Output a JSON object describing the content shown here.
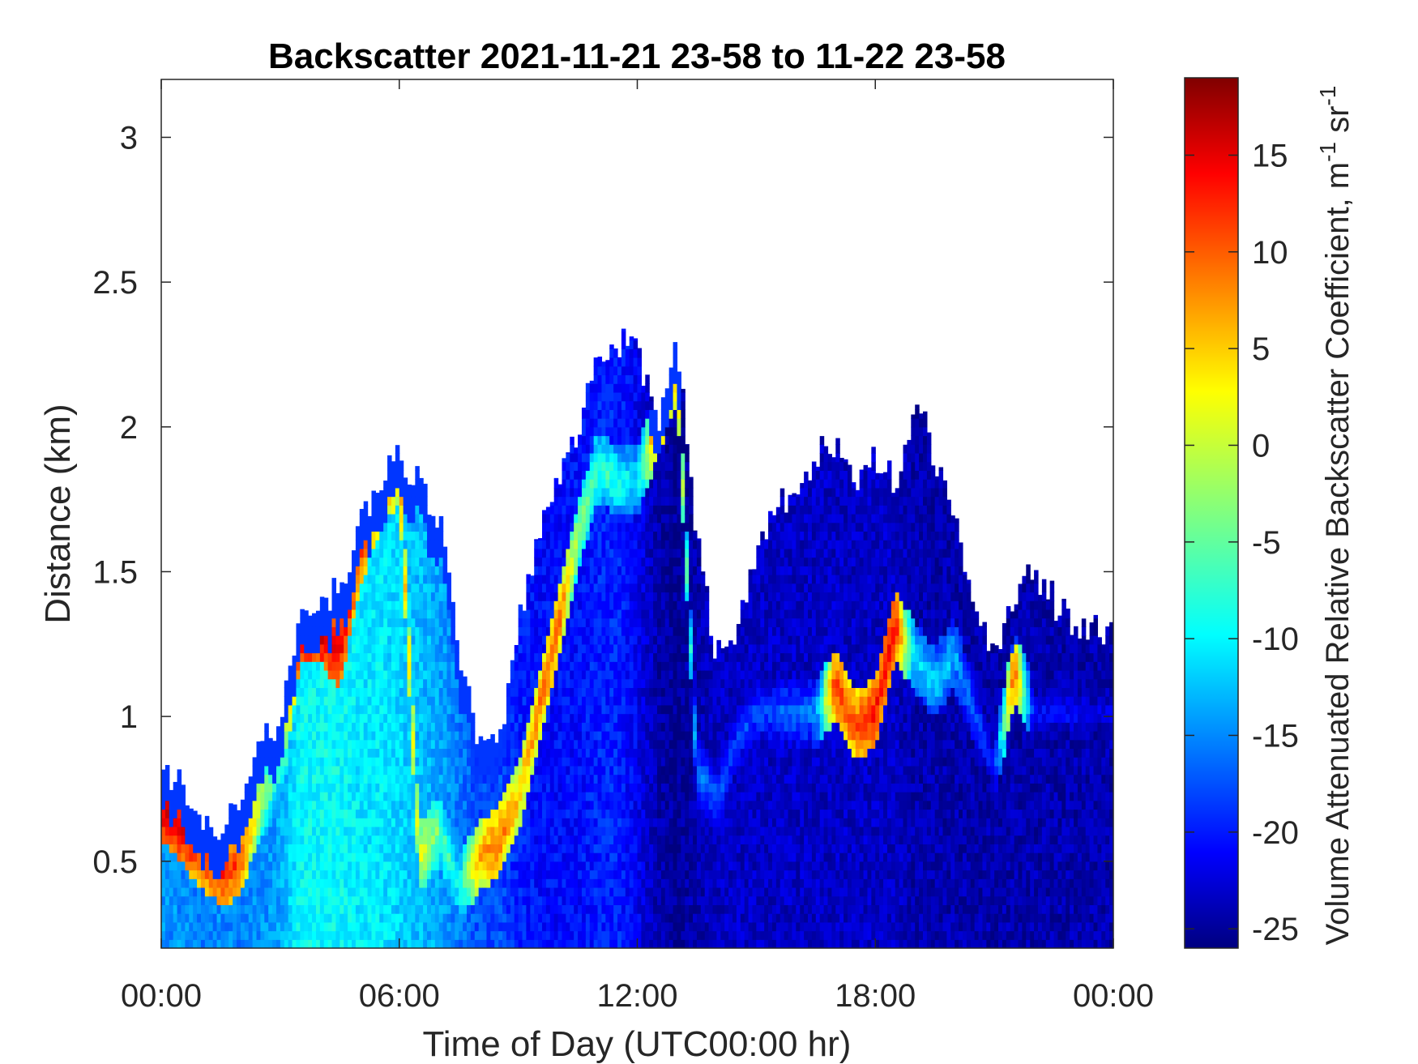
{
  "chart_data": {
    "type": "heatmap",
    "title": "Backscatter 2021-11-21 23-58 to 11-22 23-58",
    "xlabel": "Time of Day (UTC00:00 hr)",
    "ylabel": "Distance (km)",
    "colorbar_label_main": "Volume Attenuated Relative Backscatter Coefficient, m",
    "colorbar_label_sup1": "-1",
    "colorbar_label_mid": " sr",
    "colorbar_label_sup2": "-1",
    "colormap": "jet",
    "xlim_hours": [
      0,
      24
    ],
    "ylim_km": [
      0.2,
      3.2
    ],
    "clim": [
      -26,
      19
    ],
    "x_ticks_hours": [
      0,
      6,
      12,
      18,
      24
    ],
    "x_tick_labels": [
      "00:00",
      "06:00",
      "12:00",
      "18:00",
      "00:00"
    ],
    "y_ticks": [
      0.5,
      1,
      1.5,
      2,
      2.5,
      3
    ],
    "y_tick_labels": [
      "0.5",
      "1",
      "1.5",
      "2",
      "2.5",
      "3"
    ],
    "colorbar_ticks": [
      -25,
      -20,
      -15,
      -10,
      -5,
      0,
      5,
      10,
      15
    ],
    "colorbar_tick_labels": [
      "-25",
      "-20",
      "-15",
      "-10",
      "-5",
      "0",
      "5",
      "10",
      "15"
    ],
    "grid": false,
    "profiles": [
      {
        "t": 0.0,
        "top": 0.8,
        "peak_h": 0.68,
        "peak": 16,
        "base": -14
      },
      {
        "t": 0.5,
        "top": 0.78,
        "peak_h": 0.6,
        "peak": 15,
        "base": -14
      },
      {
        "t": 1.0,
        "top": 0.6,
        "peak_h": 0.52,
        "peak": 12,
        "base": -15
      },
      {
        "t": 1.5,
        "top": 0.6,
        "peak_h": 0.45,
        "peak": 13,
        "base": -14
      },
      {
        "t": 2.0,
        "top": 0.7,
        "peak_h": 0.48,
        "peak": 10,
        "base": -15
      },
      {
        "t": 2.5,
        "top": 0.9,
        "peak_h": 0.7,
        "peak": 0,
        "base": -14
      },
      {
        "t": 3.0,
        "top": 1.0,
        "peak_h": 0.8,
        "peak": -8,
        "base": -13
      },
      {
        "t": 3.5,
        "top": 1.35,
        "peak_h": 1.28,
        "peak": 15,
        "base": -9
      },
      {
        "t": 4.0,
        "top": 1.4,
        "peak_h": 1.3,
        "peak": 17,
        "base": -9
      },
      {
        "t": 4.5,
        "top": 1.45,
        "peak_h": 1.2,
        "peak": 14,
        "base": -9
      },
      {
        "t": 5.0,
        "top": 1.65,
        "peak_h": 1.55,
        "peak": 12,
        "base": -10
      },
      {
        "t": 5.5,
        "top": 1.8,
        "peak_h": 1.75,
        "peak": 9,
        "base": -10
      },
      {
        "t": 6.0,
        "top": 1.9,
        "peak_h": 1.85,
        "peak": 6,
        "base": -11
      },
      {
        "t": 6.5,
        "top": 1.8,
        "peak_h": 0.5,
        "peak": 2,
        "base": -12
      },
      {
        "t": 7.0,
        "top": 1.7,
        "peak_h": 0.6,
        "peak": -4,
        "base": -13
      },
      {
        "t": 7.5,
        "top": 1.2,
        "peak_h": 0.4,
        "peak": -8,
        "base": -15
      },
      {
        "t": 8.0,
        "top": 0.9,
        "peak_h": 0.5,
        "peak": 6,
        "base": -17
      },
      {
        "t": 8.5,
        "top": 0.9,
        "peak_h": 0.55,
        "peak": 9,
        "base": -17
      },
      {
        "t": 9.0,
        "top": 1.3,
        "peak_h": 0.7,
        "peak": 5,
        "base": -19
      },
      {
        "t": 9.5,
        "top": 1.6,
        "peak_h": 1.0,
        "peak": 8,
        "base": -20
      },
      {
        "t": 10.0,
        "top": 1.8,
        "peak_h": 1.3,
        "peak": 10,
        "base": -20
      },
      {
        "t": 10.5,
        "top": 2.0,
        "peak_h": 1.6,
        "peak": -2,
        "base": -20
      },
      {
        "t": 11.0,
        "top": 2.2,
        "peak_h": 1.85,
        "peak": -6,
        "base": -19
      },
      {
        "t": 11.5,
        "top": 2.3,
        "peak_h": 1.8,
        "peak": -7,
        "base": -19
      },
      {
        "t": 12.0,
        "top": 2.25,
        "peak_h": 1.8,
        "peak": -10,
        "base": -21
      },
      {
        "t": 12.5,
        "top": 2.0,
        "peak_h": 2.0,
        "peak": 10,
        "base": -24
      },
      {
        "t": 13.0,
        "top": 2.3,
        "peak_h": 2.2,
        "peak": 6,
        "base": -25
      },
      {
        "t": 13.5,
        "top": 1.6,
        "peak_h": 0.8,
        "peak": -14,
        "base": -24
      },
      {
        "t": 14.0,
        "top": 1.2,
        "peak_h": 0.7,
        "peak": -16,
        "base": -23
      },
      {
        "t": 14.5,
        "top": 1.3,
        "peak_h": 0.9,
        "peak": -17,
        "base": -23
      },
      {
        "t": 15.0,
        "top": 1.55,
        "peak_h": 1.0,
        "peak": -17,
        "base": -23
      },
      {
        "t": 15.5,
        "top": 1.7,
        "peak_h": 1.0,
        "peak": -16,
        "base": -23
      },
      {
        "t": 16.0,
        "top": 1.8,
        "peak_h": 1.0,
        "peak": -15,
        "base": -23
      },
      {
        "t": 16.5,
        "top": 1.9,
        "peak_h": 1.0,
        "peak": -14,
        "base": -23
      },
      {
        "t": 17.0,
        "top": 1.95,
        "peak_h": 1.1,
        "peak": 12,
        "base": -23
      },
      {
        "t": 17.5,
        "top": 1.8,
        "peak_h": 0.95,
        "peak": 10,
        "base": -23
      },
      {
        "t": 18.0,
        "top": 1.9,
        "peak_h": 1.0,
        "peak": 13,
        "base": -23
      },
      {
        "t": 18.5,
        "top": 1.8,
        "peak_h": 1.3,
        "peak": 14,
        "base": -23
      },
      {
        "t": 19.0,
        "top": 2.1,
        "peak_h": 1.2,
        "peak": -10,
        "base": -24
      },
      {
        "t": 19.5,
        "top": 1.9,
        "peak_h": 1.1,
        "peak": -10,
        "base": -24
      },
      {
        "t": 20.0,
        "top": 1.7,
        "peak_h": 1.2,
        "peak": -12,
        "base": -24
      },
      {
        "t": 20.5,
        "top": 1.4,
        "peak_h": 1.0,
        "peak": -16,
        "base": -24
      },
      {
        "t": 21.0,
        "top": 1.2,
        "peak_h": 0.8,
        "peak": -19,
        "base": -24
      },
      {
        "t": 21.5,
        "top": 1.4,
        "peak_h": 1.15,
        "peak": 11,
        "base": -24
      },
      {
        "t": 22.0,
        "top": 1.5,
        "peak_h": 1.0,
        "peak": -20,
        "base": -24
      },
      {
        "t": 22.5,
        "top": 1.4,
        "peak_h": 1.0,
        "peak": -20,
        "base": -24
      },
      {
        "t": 23.0,
        "top": 1.3,
        "peak_h": 1.0,
        "peak": -20,
        "base": -24
      },
      {
        "t": 23.5,
        "top": 1.3,
        "peak_h": 1.0,
        "peak": -21,
        "base": -24
      },
      {
        "t": 24.0,
        "top": 1.3,
        "peak_h": 1.0,
        "peak": -21,
        "base": -24
      }
    ]
  }
}
